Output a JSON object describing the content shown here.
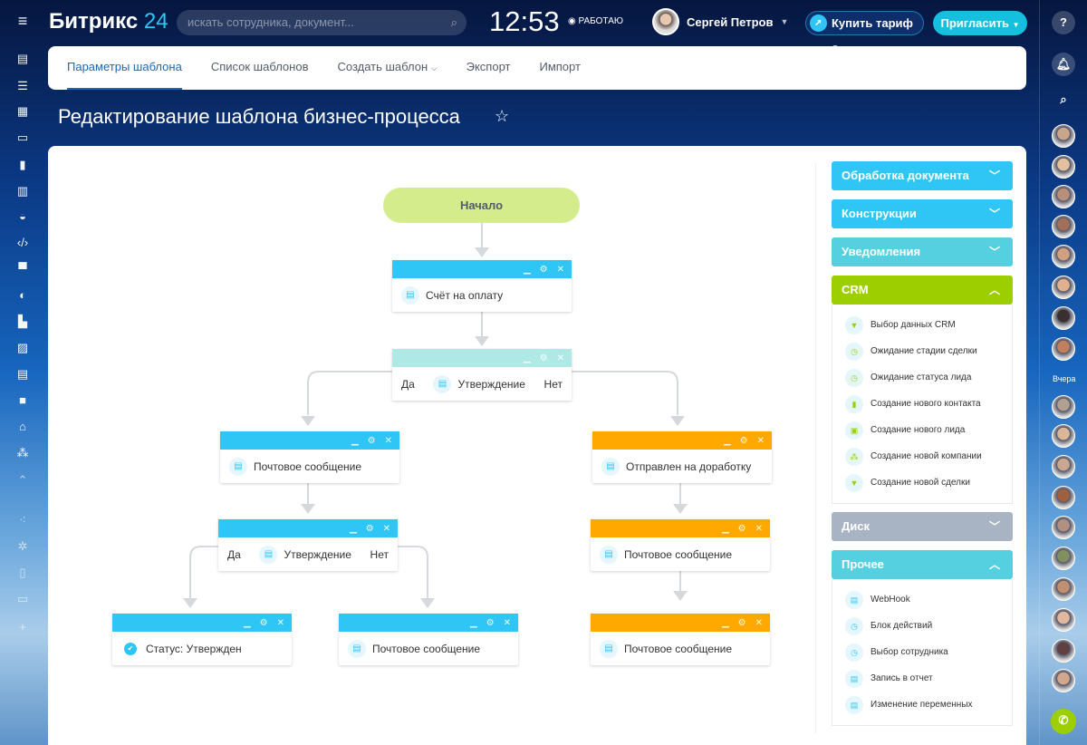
{
  "header": {
    "logo_main": "Битрикс",
    "logo_num": "24",
    "search_placeholder": "искать сотрудника, документ...",
    "time": "12:53",
    "status": "РАБОТАЮ",
    "user_name": "Сергей Петров",
    "buy_label": "Купить тариф",
    "invite_label": "Пригласить"
  },
  "tabs": [
    {
      "label": "Параметры шаблона",
      "active": true
    },
    {
      "label": "Список шаблонов"
    },
    {
      "label": "Создать шаблон",
      "dropdown": true
    },
    {
      "label": "Экспорт"
    },
    {
      "label": "Импорт"
    }
  ],
  "page_title": "Редактирование шаблона бизнес-процесса",
  "diagram": {
    "start_label": "Начало",
    "blocks": [
      {
        "label": "Счёт на оплату",
        "color": "#2fc6f6",
        "icon": "document-icon"
      },
      {
        "label": "Утверждение",
        "color": "#aee9e6",
        "icon": "document-icon",
        "yes": "Да",
        "no": "Нет"
      },
      {
        "label": "Почтовое сообщение",
        "color": "#2fc6f6",
        "icon": "document-icon"
      },
      {
        "label": "Отправлен на доработку",
        "color": "#ffa900",
        "icon": "document-icon"
      },
      {
        "label": "Утверждение",
        "color": "#2fc6f6",
        "icon": "document-icon",
        "yes": "Да",
        "no": "Нет"
      },
      {
        "label": "Почтовое сообщение",
        "color": "#ffa900",
        "icon": "document-icon"
      },
      {
        "label": "Статус: Утвержден",
        "color": "#2fc6f6",
        "icon": "check-icon"
      },
      {
        "label": "Почтовое сообщение",
        "color": "#2fc6f6",
        "icon": "document-icon"
      },
      {
        "label": "Почтовое сообщение",
        "color": "#ffa900",
        "icon": "document-icon"
      }
    ]
  },
  "palette": [
    {
      "title": "Обработка документа",
      "color": "#2fc6f6",
      "expanded": false
    },
    {
      "title": "Конструкции",
      "color": "#2fc6f6",
      "expanded": false
    },
    {
      "title": "Уведомления",
      "color": "#55d0e0",
      "expanded": false
    },
    {
      "title": "CRM",
      "color": "#9dcf00",
      "expanded": true,
      "items": [
        "Выбор данных CRM",
        "Ожидание стадии сделки",
        "Ожидание статуса лида",
        "Создание нового контакта",
        "Создание нового лида",
        "Создание новой компании",
        "Создание новой сделки"
      ]
    },
    {
      "title": "Диск",
      "color": "#a8b4c3",
      "expanded": false
    },
    {
      "title": "Прочее",
      "color": "#55d0e0",
      "expanded": true,
      "items": [
        "WebHook",
        "Блок действий",
        "Выбор сотрудника",
        "Запись в отчет",
        "Изменение переменных"
      ]
    }
  ],
  "rightbar": {
    "yesterday_label": "Вчера"
  }
}
